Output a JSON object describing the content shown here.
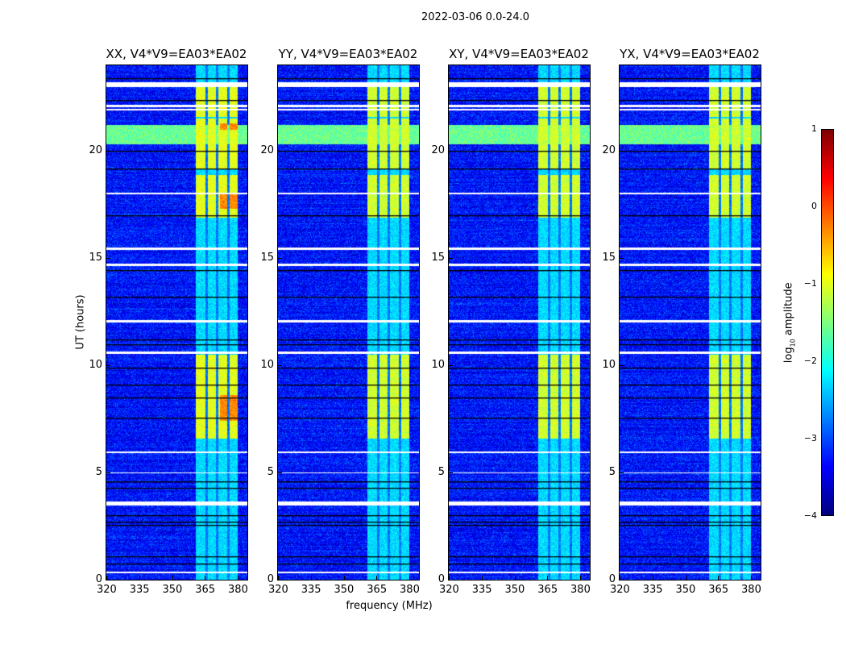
{
  "chart_data": {
    "type": "heatmap",
    "title": "2022-03-06 0.0-24.0",
    "xlabel": "frequency (MHz)",
    "ylabel": "UT (hours)",
    "xlim": [
      320,
      384.4
    ],
    "ylim": [
      0,
      24
    ],
    "xticks": [
      320,
      335,
      350,
      365,
      380
    ],
    "yticks": [
      0,
      5,
      10,
      15,
      20
    ],
    "panels": [
      {
        "title": "XX, V4*V9=EA03*EA02",
        "hot_scale": 1.0
      },
      {
        "title": "YY, V4*V9=EA03*EA02",
        "hot_scale": 0.8
      },
      {
        "title": "XY, V4*V9=EA03*EA02",
        "hot_scale": 0.8
      },
      {
        "title": "YX, V4*V9=EA03*EA02",
        "hot_scale": 0.85
      }
    ],
    "colorbar": {
      "label": "log10 amplitude",
      "label_main": "log",
      "label_sub": "10",
      "label_rest": " amplitude",
      "range": [
        -4,
        1
      ],
      "ticks": [
        1,
        0,
        -1,
        -2,
        -3,
        -4
      ],
      "tick_labels": [
        "1",
        "0",
        "−1",
        "−2",
        "−3",
        "−4"
      ],
      "colormap": "jet"
    },
    "model": {
      "background_level": -3.3,
      "rfi_band_mhz": [
        361,
        380
      ],
      "rfi_level": -2.3,
      "rfi_gaps_mhz": [
        [
          365.2,
          366.2
        ],
        [
          370.2,
          371.2
        ],
        [
          375.2,
          376.2
        ]
      ],
      "bright_hours": [
        [
          6.6,
          10.5
        ],
        [
          16.9,
          18.9
        ],
        [
          19.2,
          21.5
        ],
        [
          21.6,
          23.0
        ]
      ],
      "bright_level": -1.0,
      "hot_hours": [
        [
          7.4,
          8.6
        ],
        [
          17.3,
          18.0
        ],
        [
          21.0,
          21.3
        ]
      ],
      "hot_level": -0.3,
      "broadband_hours": [
        20.3,
        21.2
      ],
      "broadband_level": -1.6,
      "flagged_hours": [
        [
          23.0,
          23.2
        ],
        [
          22.05,
          22.15
        ],
        [
          21.9,
          21.98
        ],
        [
          18.0,
          18.05
        ],
        [
          15.4,
          15.5
        ],
        [
          14.65,
          14.75
        ],
        [
          12.0,
          12.1
        ],
        [
          10.55,
          10.65
        ],
        [
          5.9,
          6.0
        ],
        [
          4.95,
          5.0
        ],
        [
          3.45,
          3.65
        ],
        [
          0.3,
          0.36
        ]
      ],
      "black_line_hours": [
        23.4,
        22.4,
        20.0,
        19.2,
        17.0,
        14.45,
        13.2,
        11.2,
        11.0,
        9.9,
        9.1,
        8.5,
        7.55,
        4.6,
        4.3,
        3.0,
        2.7,
        2.55,
        1.1,
        0.75
      ]
    }
  }
}
